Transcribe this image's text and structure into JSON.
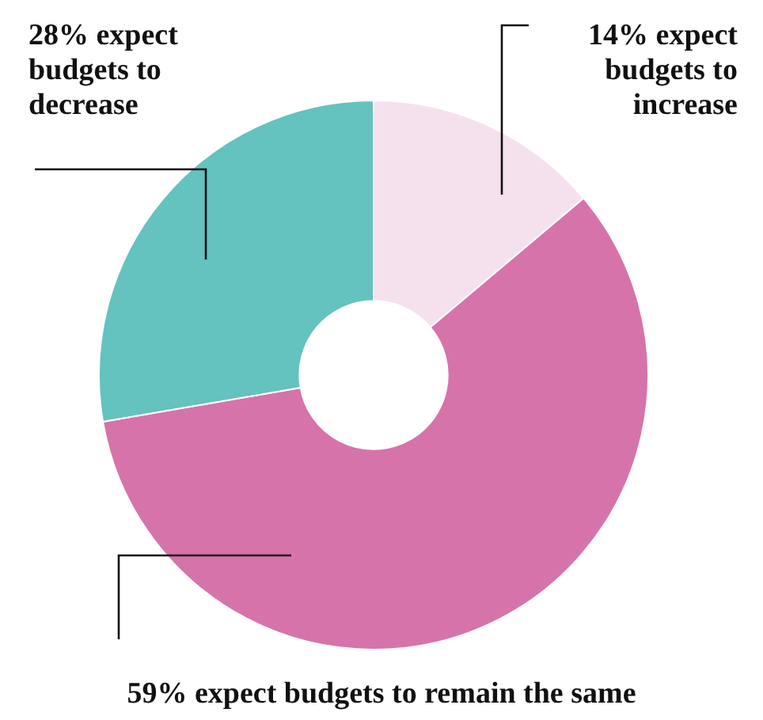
{
  "chart_data": {
    "type": "donut",
    "categories": [
      "expect budgets to increase",
      "expect budgets to remain the same",
      "expect budgets to decrease"
    ],
    "values": [
      14,
      59,
      28
    ],
    "value_labels": [
      "14%",
      "59%",
      "28%"
    ],
    "colors": [
      "#f5e1ed",
      "#d673aa",
      "#64c2bf"
    ],
    "legend": false
  }
}
